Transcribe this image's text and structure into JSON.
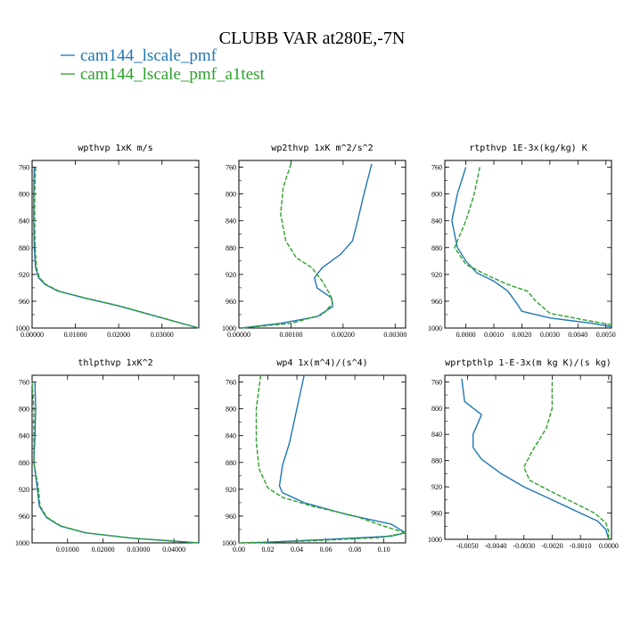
{
  "figure": {
    "title": "CLUBB VAR at280E,-7N",
    "legend": [
      {
        "label": "cam144_lscale_pmf",
        "color": "#1f77b4"
      },
      {
        "label": "cam144_lscale_pmf_a1test",
        "color": "#2ca02c"
      }
    ]
  },
  "chart_data": [
    {
      "type": "line",
      "title": "wpthvp  1xK m/s",
      "xlim": [
        0,
        0.0385
      ],
      "ylim": [
        1000,
        750
      ],
      "xticks": [
        "0.00000",
        "0.01000",
        "0.02000",
        "0.03000"
      ],
      "xtick_values": [
        0,
        0.01,
        0.02,
        0.03
      ],
      "yticks": [
        760,
        800,
        840,
        880,
        920,
        960,
        1000
      ],
      "series": [
        {
          "color": "#1f77b4",
          "dash": "",
          "points": [
            [
              0.0005,
              760
            ],
            [
              0.0004,
              800
            ],
            [
              0.0004,
              840
            ],
            [
              0.0005,
              880
            ],
            [
              0.0008,
              910
            ],
            [
              0.0015,
              925
            ],
            [
              0.003,
              935
            ],
            [
              0.006,
              945
            ],
            [
              0.012,
              955
            ],
            [
              0.02,
              967
            ],
            [
              0.03,
              985
            ],
            [
              0.0385,
              1000
            ]
          ]
        },
        {
          "color": "#2ca02c",
          "dash": "5,2",
          "points": [
            [
              0.0008,
              760
            ],
            [
              0.0006,
              800
            ],
            [
              0.0006,
              840
            ],
            [
              0.0007,
              880
            ],
            [
              0.001,
              910
            ],
            [
              0.0017,
              925
            ],
            [
              0.0032,
              935
            ],
            [
              0.0062,
              945
            ],
            [
              0.0122,
              955
            ],
            [
              0.0202,
              967
            ],
            [
              0.0302,
              985
            ],
            [
              0.0385,
              1000
            ]
          ]
        }
      ]
    },
    {
      "type": "line",
      "title": "wp2thvp  1xK m^2/s^2",
      "xlim": [
        0,
        0.0032
      ],
      "ylim": [
        1000,
        750
      ],
      "xticks": [
        "0.00000",
        "0.00100",
        "0.00200",
        "0.00300"
      ],
      "xtick_values": [
        0,
        0.001,
        0.002,
        0.003
      ],
      "yticks": [
        760,
        800,
        840,
        880,
        920,
        960,
        1000
      ],
      "series": [
        {
          "color": "#1f77b4",
          "dash": "",
          "points": [
            [
              0.00255,
              755
            ],
            [
              0.0024,
              800
            ],
            [
              0.00228,
              840
            ],
            [
              0.00218,
              870
            ],
            [
              0.00195,
              890
            ],
            [
              0.0016,
              910
            ],
            [
              0.00145,
              925
            ],
            [
              0.0015,
              940
            ],
            [
              0.00178,
              955
            ],
            [
              0.0018,
              968
            ],
            [
              0.0015,
              983
            ],
            [
              0.0008,
              993
            ],
            [
              5e-05,
              1000
            ]
          ]
        },
        {
          "color": "#2ca02c",
          "dash": "5,2",
          "points": [
            [
              0.001,
              755
            ],
            [
              0.00085,
              790
            ],
            [
              0.0008,
              830
            ],
            [
              0.0009,
              870
            ],
            [
              0.0011,
              895
            ],
            [
              0.0014,
              910
            ],
            [
              0.0016,
              930
            ],
            [
              0.00175,
              950
            ],
            [
              0.0018,
              963
            ],
            [
              0.0016,
              980
            ],
            [
              0.001,
              993
            ],
            [
              5e-05,
              1000
            ]
          ]
        }
      ]
    },
    {
      "type": "line",
      "title": "rtpthvp  1E-3x(kg/kg) K",
      "xlim": [
        -0.00075,
        0.0052
      ],
      "ylim": [
        1000,
        750
      ],
      "xticks": [
        "0.0000",
        "0.0010",
        "0.0020",
        "0.0030",
        "0.0040",
        "0.0050"
      ],
      "xtick_values": [
        0,
        0.001,
        0.002,
        0.003,
        0.004,
        0.005
      ],
      "yticks": [
        760,
        800,
        840,
        880,
        920,
        960,
        1000
      ],
      "series": [
        {
          "color": "#1f77b4",
          "dash": "",
          "points": [
            [
              0.0,
              760
            ],
            [
              -0.0003,
              800
            ],
            [
              -0.0005,
              840
            ],
            [
              -0.0003,
              880
            ],
            [
              0.0,
              900
            ],
            [
              0.0004,
              918
            ],
            [
              0.001,
              930
            ],
            [
              0.0015,
              945
            ],
            [
              0.0018,
              962
            ],
            [
              0.002,
              975
            ],
            [
              0.003,
              985
            ],
            [
              0.0045,
              993
            ],
            [
              0.0052,
              998
            ]
          ]
        },
        {
          "color": "#2ca02c",
          "dash": "5,2",
          "points": [
            [
              0.0005,
              760
            ],
            [
              0.0003,
              800
            ],
            [
              0.0,
              840
            ],
            [
              -0.0004,
              880
            ],
            [
              0.0,
              905
            ],
            [
              0.0008,
              922
            ],
            [
              0.0015,
              935
            ],
            [
              0.0022,
              945
            ],
            [
              0.0025,
              960
            ],
            [
              0.003,
              978
            ],
            [
              0.0045,
              990
            ],
            [
              0.0052,
              995
            ]
          ]
        }
      ]
    },
    {
      "type": "line",
      "title": "thlpthvp  1xK^2",
      "xlim": [
        0,
        0.047
      ],
      "ylim": [
        1000,
        750
      ],
      "xticks": [
        "0.01000",
        "0.02000",
        "0.03000",
        "0.04000"
      ],
      "xtick_values": [
        0.01,
        0.02,
        0.03,
        0.04
      ],
      "yticks": [
        760,
        800,
        840,
        880,
        920,
        960,
        1000
      ],
      "series": [
        {
          "color": "#1f77b4",
          "dash": "",
          "points": [
            [
              0.0008,
              760
            ],
            [
              0.001,
              800
            ],
            [
              0.0008,
              840
            ],
            [
              0.0005,
              880
            ],
            [
              0.0015,
              920
            ],
            [
              0.002,
              945
            ],
            [
              0.004,
              962
            ],
            [
              0.008,
              975
            ],
            [
              0.015,
              985
            ],
            [
              0.028,
              993
            ],
            [
              0.047,
              1000
            ]
          ]
        },
        {
          "color": "#2ca02c",
          "dash": "5,2",
          "points": [
            [
              0.0,
              760
            ],
            [
              0.0005,
              800
            ],
            [
              0.0005,
              840
            ],
            [
              0.0005,
              880
            ],
            [
              0.0018,
              920
            ],
            [
              0.0022,
              945
            ],
            [
              0.0042,
              962
            ],
            [
              0.0082,
              975
            ],
            [
              0.0152,
              985
            ],
            [
              0.0282,
              993
            ],
            [
              0.047,
              1000
            ]
          ]
        }
      ]
    },
    {
      "type": "line",
      "title": "wp4  1x(m^4)/(s^4)",
      "xlim": [
        0,
        0.115
      ],
      "ylim": [
        1000,
        750
      ],
      "xticks": [
        "0.00",
        "0.02",
        "0.04",
        "0.06",
        "0.08",
        "0.10"
      ],
      "xtick_values": [
        0,
        0.02,
        0.04,
        0.06,
        0.08,
        0.1
      ],
      "yticks": [
        760,
        800,
        840,
        880,
        920,
        960,
        1000
      ],
      "series": [
        {
          "color": "#1f77b4",
          "dash": "",
          "points": [
            [
              0.045,
              750
            ],
            [
              0.04,
              800
            ],
            [
              0.035,
              850
            ],
            [
              0.03,
              885
            ],
            [
              0.028,
              915
            ],
            [
              0.03,
              925
            ],
            [
              0.045,
              940
            ],
            [
              0.075,
              958
            ],
            [
              0.105,
              972
            ],
            [
              0.115,
              985
            ],
            [
              0.105,
              990
            ],
            [
              0.06,
              995
            ],
            [
              0.01,
              1000
            ]
          ]
        },
        {
          "color": "#2ca02c",
          "dash": "5,2",
          "points": [
            [
              0.015,
              750
            ],
            [
              0.012,
              800
            ],
            [
              0.012,
              850
            ],
            [
              0.014,
              890
            ],
            [
              0.02,
              918
            ],
            [
              0.03,
              932
            ],
            [
              0.05,
              945
            ],
            [
              0.08,
              960
            ],
            [
              0.1,
              975
            ],
            [
              0.115,
              985
            ],
            [
              0.098,
              992
            ],
            [
              0.05,
              997
            ],
            [
              0.0,
              1000
            ]
          ]
        }
      ]
    },
    {
      "type": "line",
      "title": "wprtpthlp  1-E-3x(m kg K)/(s kg)",
      "xlim": [
        -0.0058,
        0.0001
      ],
      "ylim": [
        1000,
        750
      ],
      "xticks": [
        "-0.0050",
        "-0.0040",
        "-0.0030",
        "-0.0020",
        "-0.0010",
        "0.0000"
      ],
      "xtick_values": [
        -0.005,
        -0.004,
        -0.003,
        -0.002,
        -0.001,
        0
      ],
      "yticks": [
        760,
        800,
        840,
        880,
        920,
        960,
        1000
      ],
      "series": [
        {
          "color": "#1f77b4",
          "dash": "",
          "points": [
            [
              -0.0052,
              755
            ],
            [
              -0.0051,
              790
            ],
            [
              -0.0045,
              810
            ],
            [
              -0.0048,
              840
            ],
            [
              -0.0048,
              860
            ],
            [
              -0.0045,
              878
            ],
            [
              -0.0038,
              900
            ],
            [
              -0.003,
              920
            ],
            [
              -0.002,
              940
            ],
            [
              -0.001,
              960
            ],
            [
              -0.0004,
              972
            ],
            [
              -0.0001,
              985
            ],
            [
              0.0,
              1000
            ]
          ]
        },
        {
          "color": "#2ca02c",
          "dash": "5,2",
          "points": [
            [
              -0.002,
              760
            ],
            [
              -0.002,
              800
            ],
            [
              -0.0022,
              830
            ],
            [
              -0.0027,
              865
            ],
            [
              -0.003,
              890
            ],
            [
              -0.0028,
              910
            ],
            [
              -0.002,
              928
            ],
            [
              -0.0012,
              945
            ],
            [
              -0.0005,
              960
            ],
            [
              -0.0001,
              975
            ],
            [
              0.0,
              988
            ],
            [
              0.0,
              1000
            ]
          ]
        }
      ]
    }
  ]
}
